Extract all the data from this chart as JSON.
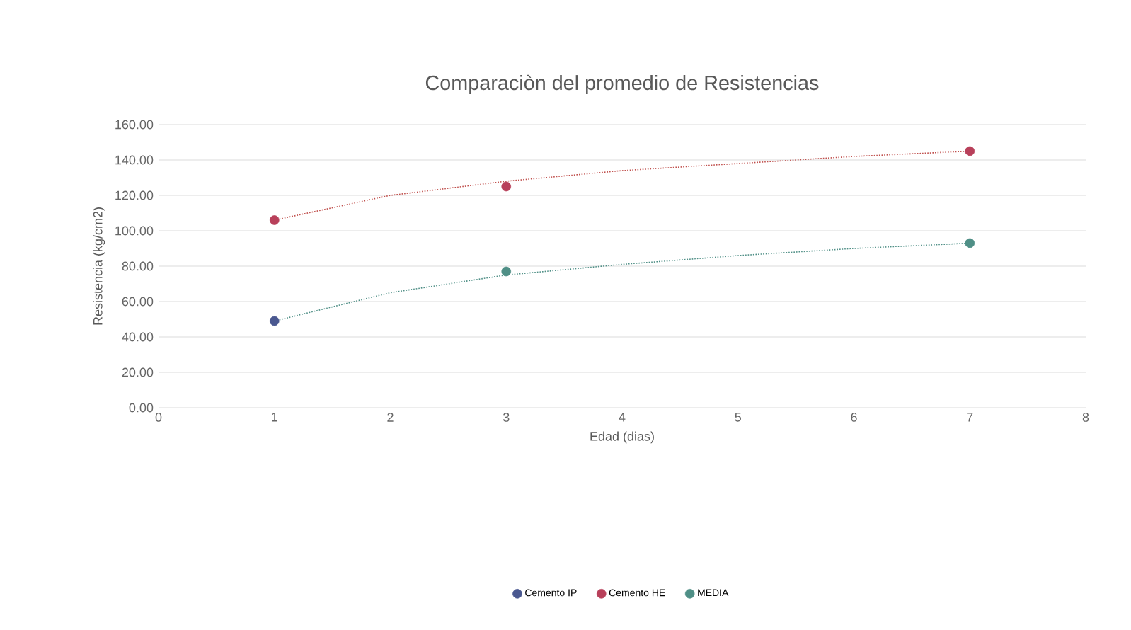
{
  "chart_data": {
    "type": "scatter",
    "title": "Comparaciòn del promedio de Resistencias",
    "xlabel": "Edad (dias)",
    "ylabel": "Resistencia (kg/cm2)",
    "x": [
      1,
      3,
      7
    ],
    "series": [
      {
        "name": "Cemento IP",
        "marker": "circle",
        "color": "#4a5890",
        "values": [
          49,
          null,
          null
        ]
      },
      {
        "name": "Cemento HE",
        "marker": "circle",
        "color": "#b8405a",
        "values": [
          106,
          125,
          145
        ]
      },
      {
        "name": "MEDIA",
        "marker": "circle",
        "color": "#4f8f86",
        "values": [
          null,
          77,
          93
        ]
      },
      {
        "type": "line",
        "marker": "none",
        "line_style": "dotted",
        "color": "#4f8f86",
        "x": [
          1,
          2,
          3,
          4,
          5,
          6,
          7
        ],
        "values": [
          49,
          65,
          75,
          81,
          86,
          90,
          93
        ]
      },
      {
        "type": "line",
        "marker": "none",
        "line_style": "dotted",
        "color": "#c0504d",
        "x": [
          1,
          2,
          3,
          4,
          5,
          6,
          7
        ],
        "values": [
          106,
          120,
          128,
          134,
          138,
          142,
          145
        ]
      }
    ],
    "xlim": [
      0,
      8
    ],
    "xticks": [
      0,
      1,
      2,
      3,
      4,
      5,
      6,
      7,
      8
    ],
    "ylim": [
      0,
      160
    ],
    "yticks": [
      {
        "value": 0,
        "label": "0.00"
      },
      {
        "value": 20,
        "label": "20.00"
      },
      {
        "value": 40,
        "label": "40.00"
      },
      {
        "value": 60,
        "label": "60.00"
      },
      {
        "value": 80,
        "label": "80.00"
      },
      {
        "value": 100,
        "label": "100.00"
      },
      {
        "value": 120,
        "label": "120.00"
      },
      {
        "value": 140,
        "label": "140.00"
      },
      {
        "value": 160,
        "label": "160.00"
      }
    ],
    "grid": "y",
    "legend": "bottom"
  }
}
